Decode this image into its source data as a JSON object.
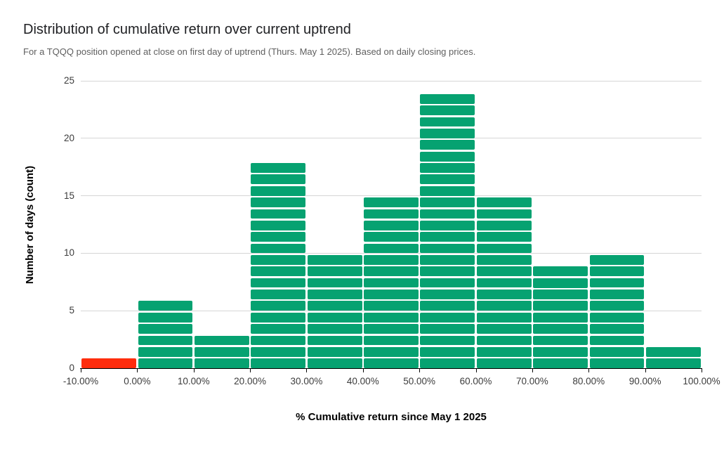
{
  "chart_data": {
    "type": "bar",
    "subtype": "histogram",
    "title": "Distribution of cumulative return over current uptrend",
    "subtitle": "For a TQQQ position opened at close on first day of uptrend (Thurs. May 1 2025). Based on daily closing prices.",
    "xlabel": "% Cumulative return since May 1 2025",
    "ylabel": "Number of days (count)",
    "categories": [
      "-10.00% to 0.00%",
      "0.00% to 10.00%",
      "10.00% to 20.00%",
      "20.00% to 30.00%",
      "30.00% to 40.00%",
      "40.00% to 50.00%",
      "50.00% to 60.00%",
      "60.00% to 70.00%",
      "70.00% to 80.00%",
      "80.00% to 90.00%",
      "90.00% to 100.00%"
    ],
    "values": [
      1,
      6,
      3,
      18,
      10,
      15,
      24,
      15,
      9,
      10,
      2
    ],
    "bar_colors": [
      "#fe2d0d",
      "#06a271",
      "#06a271",
      "#06a271",
      "#06a271",
      "#06a271",
      "#06a271",
      "#06a271",
      "#06a271",
      "#06a271",
      "#06a271"
    ],
    "x_tick_labels": [
      "-10.00%",
      "0.00%",
      "10.00%",
      "20.00%",
      "30.00%",
      "40.00%",
      "50.00%",
      "60.00%",
      "70.00%",
      "80.00%",
      "90.00%",
      "100.00%"
    ],
    "y_ticks": [
      0,
      5,
      10,
      15,
      20,
      25
    ],
    "ylim": [
      0,
      25
    ],
    "grid": true,
    "legend": "none",
    "bar_unit_segments": true,
    "colors": {
      "bar_green": "#06a271",
      "bar_red": "#fe2d0d",
      "gridline": "#d6d6d6",
      "axis_line": "#000000",
      "title_text": "#202124",
      "subtitle_text": "#5f5f5f",
      "tick_text": "#3c3c3c"
    }
  }
}
